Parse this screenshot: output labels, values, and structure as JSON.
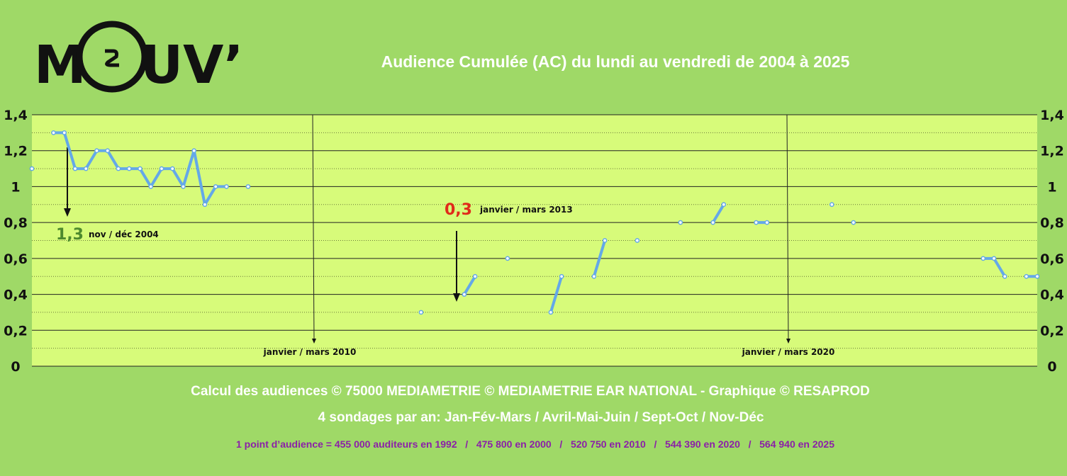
{
  "logo": {
    "left_text": "M",
    "right_text": "UV’"
  },
  "chart_data": {
    "type": "line",
    "title": "Audience Cumulée (AC) du lundi au vendredi de 2004 à 2025",
    "xlabel": "",
    "ylabel": "",
    "ylim": [
      0,
      1.4
    ],
    "y_ticks": [
      "0",
      "0,2",
      "0,4",
      "0,6",
      "0,8",
      "1",
      "1,2",
      "1,4"
    ],
    "y_tick_values": [
      0,
      0.2,
      0.4,
      0.6,
      0.8,
      1.0,
      1.2,
      1.4
    ],
    "grid": true,
    "series": [
      {
        "values": [
          1.1,
          null,
          1.3,
          1.3,
          1.1,
          1.1,
          1.2,
          1.2,
          1.1,
          1.1,
          1.1,
          1.0,
          1.1,
          1.1,
          1.0,
          1.2,
          0.9,
          1.0,
          1.0,
          null,
          1.0,
          null,
          null,
          null,
          null,
          null,
          null,
          null,
          null,
          null,
          null,
          null,
          null,
          null,
          null,
          null,
          0.3,
          null,
          null,
          null,
          0.4,
          0.5,
          null,
          null,
          0.6,
          null,
          null,
          null,
          0.3,
          0.5,
          null,
          null,
          0.5,
          0.7,
          null,
          null,
          0.7,
          null,
          null,
          null,
          0.8,
          null,
          null,
          0.8,
          0.9,
          null,
          null,
          0.8,
          0.8,
          null,
          null,
          null,
          null,
          null,
          0.9,
          null,
          0.8,
          null,
          null,
          null,
          null,
          null,
          null,
          null,
          null,
          null,
          null,
          null,
          0.6,
          0.6,
          0.5,
          null,
          0.5,
          0.5
        ],
        "color": "#64a8e8"
      }
    ],
    "annotations": [
      {
        "value": "1,3",
        "label": "nov / déc 2004",
        "color": "#4e8a2e"
      },
      {
        "value": "0,3",
        "label": "janvier / mars 2013",
        "color": "#e02a1a"
      }
    ],
    "markers": [
      {
        "label": "janvier / mars 2010"
      },
      {
        "label": "janvier / mars 2020"
      }
    ]
  },
  "footer": {
    "line1": "Calcul des audiences © 75000 MEDIAMETRIE © MEDIAMETRIE EAR NATIONAL - Graphique © RESAPROD",
    "line2": "4 sondages par an: Jan-Fév-Mars / Avril-Mai-Juin / Sept-Oct / Nov-Déc",
    "line3": "1 point d’audience = 455 000 auditeurs en 1992   /   475 800 en 2000   /   520 750 en 2010   /   544 390 en 2020   /   564 940 en 2025"
  },
  "colors": {
    "background": "#9fd967",
    "plot_area": "#d7fb7a",
    "line": "#64a8e8",
    "footer_text": "#ffffff",
    "footer_purple": "#8b1fa8"
  }
}
